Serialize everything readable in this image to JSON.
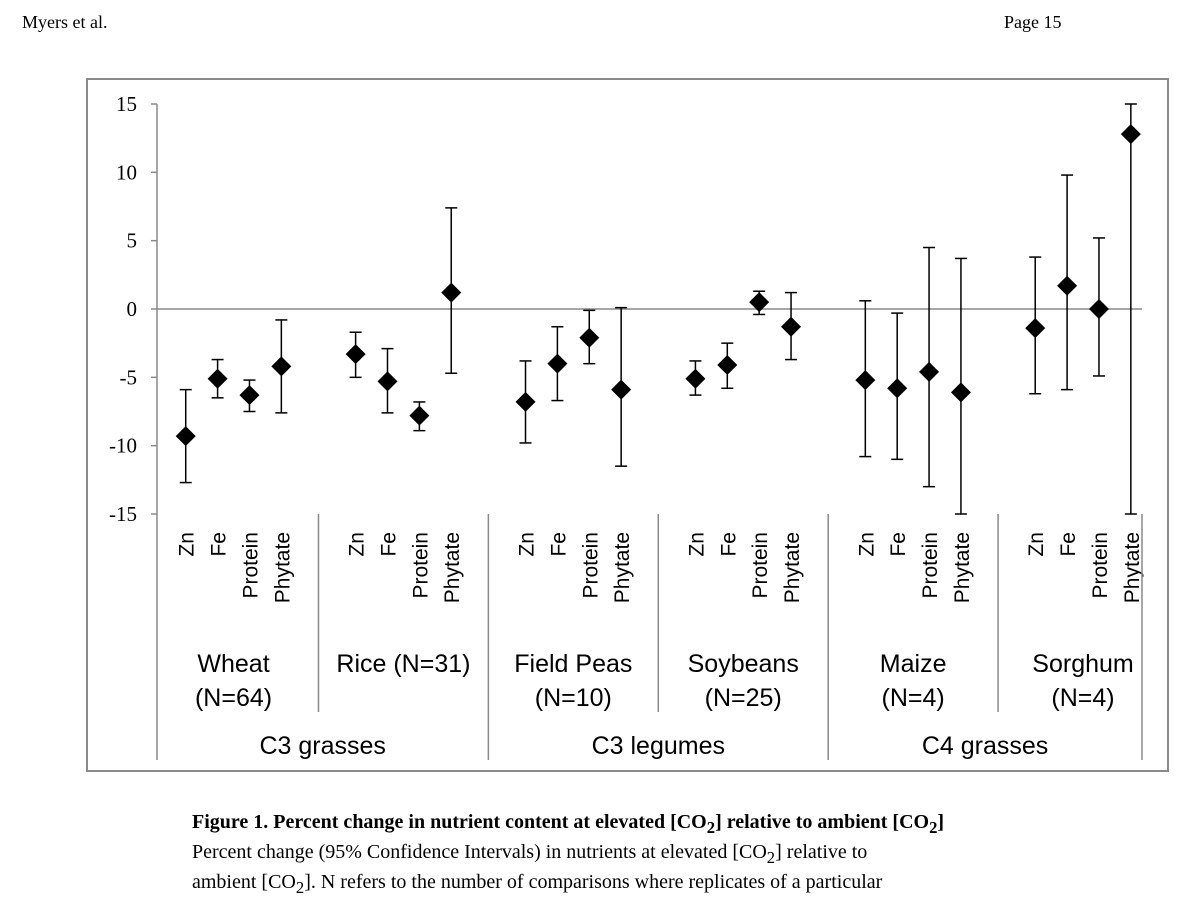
{
  "header": {
    "author": "Myers et al.",
    "page": "Page 15"
  },
  "chart_data": {
    "type": "scatter",
    "subtype": "point-with-error-bars",
    "title": "",
    "ylabel": "",
    "ylim": [
      -15,
      15
    ],
    "yticks": [
      15,
      10,
      5,
      0,
      -5,
      -10,
      -15
    ],
    "ytick_labels": [
      "15",
      "10",
      "5",
      "0",
      "-5",
      "-10",
      "-15"
    ],
    "nutrients": [
      "Zn",
      "Fe",
      "Protein",
      "Phytate"
    ],
    "crops": [
      {
        "label1": "Wheat",
        "label2": "(N=64)",
        "group": "C3 grasses",
        "points": [
          {
            "mean": -9.3,
            "low": -12.7,
            "high": -5.9
          },
          {
            "mean": -5.1,
            "low": -6.5,
            "high": -3.7
          },
          {
            "mean": -6.3,
            "low": -7.5,
            "high": -5.2
          },
          {
            "mean": -4.2,
            "low": -7.6,
            "high": -0.8
          }
        ]
      },
      {
        "label1": "Rice (N=31)",
        "label2": "",
        "group": "C3 grasses",
        "points": [
          {
            "mean": -3.3,
            "low": -5.0,
            "high": -1.7
          },
          {
            "mean": -5.3,
            "low": -7.6,
            "high": -2.9
          },
          {
            "mean": -7.8,
            "low": -8.9,
            "high": -6.8
          },
          {
            "mean": 1.2,
            "low": -4.7,
            "high": 7.4
          }
        ]
      },
      {
        "label1": "Field Peas",
        "label2": "(N=10)",
        "group": "C3 legumes",
        "points": [
          {
            "mean": -6.8,
            "low": -9.8,
            "high": -3.8
          },
          {
            "mean": -4.0,
            "low": -6.7,
            "high": -1.3
          },
          {
            "mean": -2.1,
            "low": -4.0,
            "high": -0.1
          },
          {
            "mean": -5.9,
            "low": -11.5,
            "high": 0.1
          }
        ]
      },
      {
        "label1": "Soybeans",
        "label2": "(N=25)",
        "group": "C3 legumes",
        "points": [
          {
            "mean": -5.1,
            "low": -6.3,
            "high": -3.8
          },
          {
            "mean": -4.1,
            "low": -5.8,
            "high": -2.5
          },
          {
            "mean": 0.5,
            "low": -0.4,
            "high": 1.3
          },
          {
            "mean": -1.3,
            "low": -3.7,
            "high": 1.2
          }
        ]
      },
      {
        "label1": "Maize",
        "label2": "(N=4)",
        "group": "C4 grasses",
        "points": [
          {
            "mean": -5.2,
            "low": -10.8,
            "high": 0.6
          },
          {
            "mean": -5.8,
            "low": -11.0,
            "high": -0.3
          },
          {
            "mean": -4.6,
            "low": -13.0,
            "high": 4.5
          },
          {
            "mean": -6.1,
            "low": -15.0,
            "high": 3.7
          }
        ]
      },
      {
        "label1": "Sorghum",
        "label2": "(N=4)",
        "group": "C4 grasses",
        "points": [
          {
            "mean": -1.4,
            "low": -6.2,
            "high": 3.8
          },
          {
            "mean": 1.7,
            "low": -5.9,
            "high": 9.8
          },
          {
            "mean": 0.0,
            "low": -4.9,
            "high": 5.2
          },
          {
            "mean": 12.8,
            "low": -15.0,
            "high": 15.0
          }
        ]
      }
    ],
    "groups": [
      "C3 grasses",
      "C3 legumes",
      "C4 grasses"
    ]
  },
  "caption": {
    "title_pre": "Figure 1. Percent change in nutrient content at elevated [CO",
    "title_mid": "] relative to ambient [CO",
    "title_post": "]",
    "sub": "2",
    "line1_pre": "Percent change (95% Confidence Intervals) in nutrients at elevated [CO",
    "line1_post": "] relative to",
    "line2_pre": "ambient [CO",
    "line2_post": "]. N refers to the number of comparisons where replicates of a particular"
  }
}
